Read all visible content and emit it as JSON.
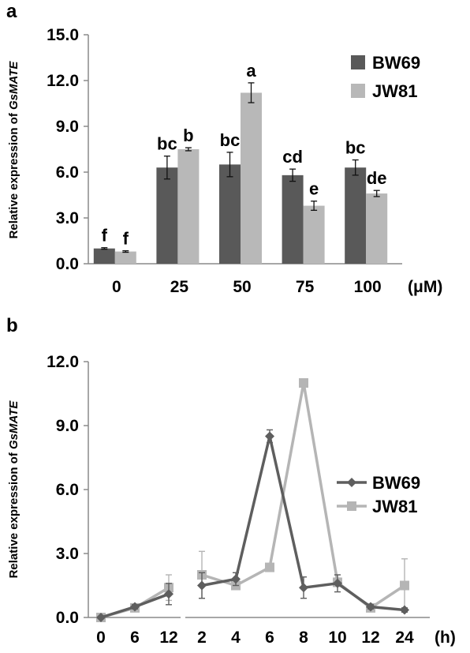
{
  "colors": {
    "bw69": "#595959",
    "jw81": "#b8b8b8",
    "bw69_line": "#5e5e5e",
    "jw81_line": "#b5b5b5",
    "axis": "#8a8a8a"
  },
  "chart_data": [
    {
      "panel": "a",
      "type": "bar",
      "ylabel_prefix": "Relative expression of ",
      "ylabel_gene": "GsMATE",
      "unit_label": "(μM)",
      "categories": [
        "0",
        "25",
        "50",
        "75",
        "100"
      ],
      "ylim": [
        0,
        15
      ],
      "yticks": [
        "0.0",
        "3.0",
        "6.0",
        "9.0",
        "12.0",
        "15.0"
      ],
      "legend_position": "top-right",
      "series": [
        {
          "name": "BW69",
          "values": [
            1.0,
            6.3,
            6.5,
            5.8,
            6.3
          ],
          "errors": [
            0.05,
            0.75,
            0.8,
            0.4,
            0.5
          ],
          "labels": [
            "f",
            "bc",
            "bc",
            "cd",
            "bc"
          ]
        },
        {
          "name": "JW81",
          "values": [
            0.8,
            7.5,
            11.2,
            3.8,
            4.6
          ],
          "errors": [
            0.05,
            0.1,
            0.65,
            0.3,
            0.2
          ],
          "labels": [
            "f",
            "b",
            "a",
            "e",
            "de"
          ]
        }
      ]
    },
    {
      "panel": "b",
      "type": "line",
      "ylabel_prefix": "Relative expression of ",
      "ylabel_gene": "GsMATE",
      "unit_label": "(h)",
      "categories": [
        "0",
        "6",
        "12",
        "2",
        "4",
        "6",
        "8",
        "10",
        "12",
        "24"
      ],
      "ylim": [
        0,
        12
      ],
      "yticks": [
        "0.0",
        "3.0",
        "6.0",
        "9.0",
        "12.0"
      ],
      "legend_position": "right",
      "series": [
        {
          "name": "BW69",
          "marker": "diamond",
          "values": [
            0.0,
            0.5,
            1.1,
            1.5,
            1.8,
            8.5,
            1.4,
            1.6,
            0.5,
            0.35
          ],
          "errors": [
            0.0,
            0.1,
            0.5,
            0.6,
            0.3,
            0.3,
            0.5,
            0.4,
            0.1,
            0.1
          ]
        },
        {
          "name": "JW81",
          "marker": "square",
          "values": [
            0.0,
            0.45,
            1.4,
            2.0,
            1.5,
            2.35,
            11.0,
            1.65,
            0.45,
            1.5
          ],
          "errors": [
            0.0,
            0.1,
            0.6,
            1.1,
            0.1,
            0.1,
            0.1,
            0.2,
            0.1,
            1.25
          ]
        }
      ]
    }
  ]
}
